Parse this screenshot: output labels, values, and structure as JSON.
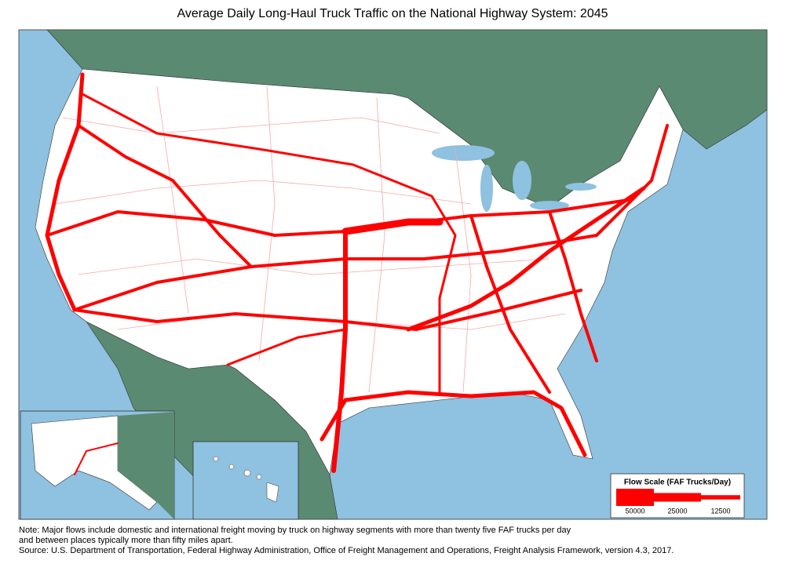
{
  "title": "Average Daily Long-Haul Truck Traffic on the National Highway System: 2045",
  "legend": {
    "title": "Flow Scale (FAF Trucks/Day)",
    "items": [
      50000,
      25000,
      12500
    ]
  },
  "notes": [
    "Note: Major flows include domestic and international freight moving by truck on highway segments with more than twenty five FAF trucks per day",
    "and between places typically more than fifty miles apart."
  ],
  "source": "Source:  U.S. Department of Transportation, Federal Highway Administration, Office of Freight Management and Operations, Freight Analysis Framework, version 4.3, 2017."
}
